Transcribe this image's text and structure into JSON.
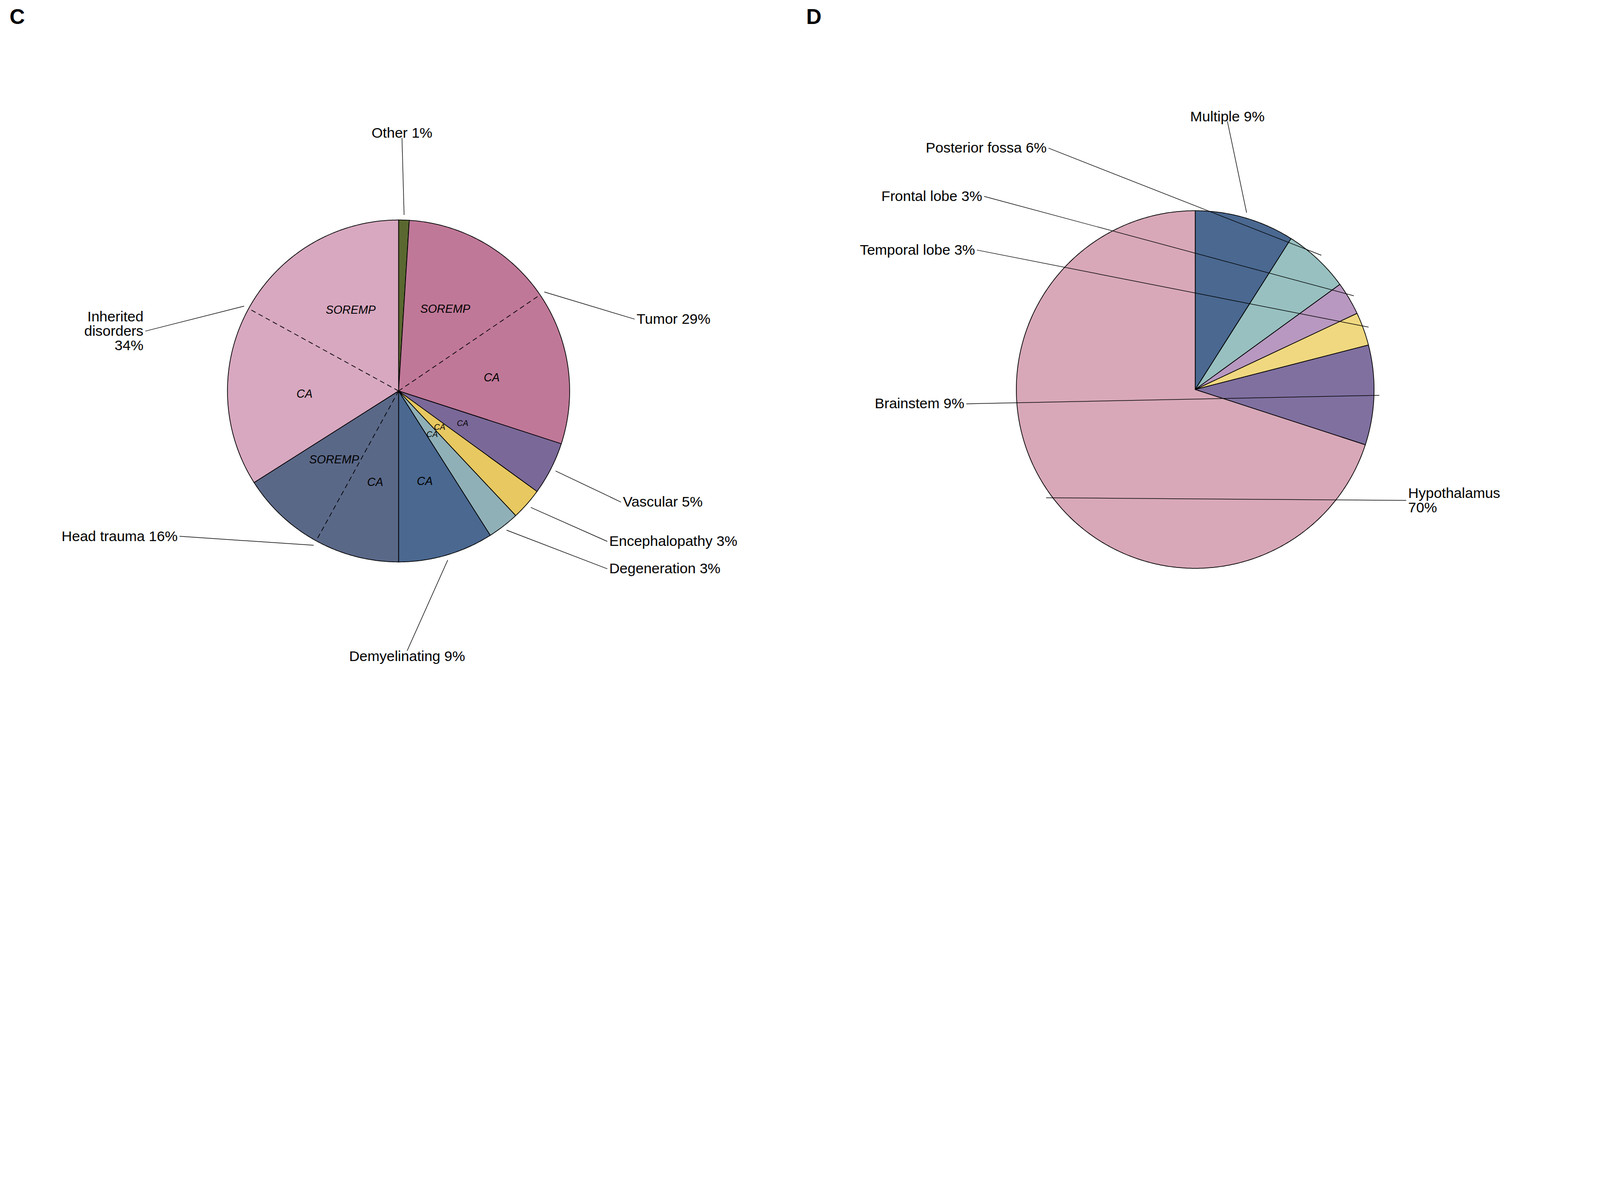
{
  "chart_data": [
    {
      "type": "pie",
      "title": "C",
      "categories": [
        "Other 1%",
        "Tumor 29%",
        "Vascular 5%",
        "Encephalopathy 3%",
        "Degeneration 3%",
        "Demyelinating 9%",
        "Head trauma 16%",
        "Inherited\ndisorders\n34%"
      ],
      "values": [
        1,
        29,
        5,
        3,
        3,
        9,
        16,
        34
      ],
      "colors": [
        "#5a6830",
        "#c07898",
        "#7a6898",
        "#e8c860",
        "#90b0b8",
        "#4a6890",
        "#5a6888",
        "#d8a8c0"
      ],
      "annotations": [
        {
          "category": "Tumor 29%",
          "text": "SOREMP"
        },
        {
          "category": "Tumor 29%",
          "text": "CA"
        },
        {
          "category": "Vascular 5%",
          "text": "CA"
        },
        {
          "category": "Encephalopathy 3%",
          "text": "CA"
        },
        {
          "category": "Degeneration 3%",
          "text": "CA"
        },
        {
          "category": "Demyelinating 9%",
          "text": "CA"
        },
        {
          "category": "Head trauma 16%",
          "text": "CA"
        },
        {
          "category": "Head trauma 16%",
          "text": "SOREMP"
        },
        {
          "category": "Inherited\ndisorders\n34%",
          "text": "CA"
        },
        {
          "category": "Inherited\ndisorders\n34%",
          "text": "SOREMP"
        }
      ]
    },
    {
      "type": "pie",
      "title": "D",
      "categories": [
        "Multiple 9%",
        "Posterior fossa 6%",
        "Frontal lobe 3%",
        "Temporal lobe 3%",
        "Brainstem 9%",
        "Hypothalamus\n70%"
      ],
      "values": [
        9,
        6,
        3,
        3,
        9,
        70
      ],
      "colors": [
        "#4a6890",
        "#98c0c0",
        "#b898c0",
        "#f0d880",
        "#8070a0",
        "#d8a8b8"
      ]
    }
  ]
}
